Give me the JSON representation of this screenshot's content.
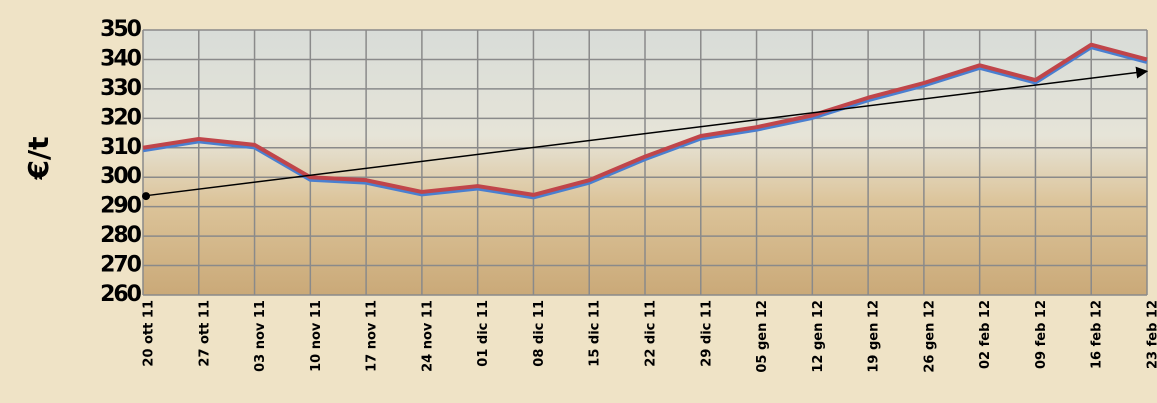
{
  "chart_data": {
    "type": "line",
    "ylabel": "€/t",
    "categories": [
      "20 ott 11",
      "27 ott 11",
      "03 nov 11",
      "10 nov 11",
      "17 nov 11",
      "24 nov 11",
      "01 dic 11",
      "08 dic 11",
      "15 dic 11",
      "22 dic 11",
      "29 dic 11",
      "05 gen 12",
      "12 gen 12",
      "19 gen 12",
      "26 gen 12",
      "02 feb 12",
      "09 feb 12",
      "16 feb 12",
      "23 feb 12"
    ],
    "series": [
      {
        "color": "#c0454a",
        "shadow_color": "#4a7fd0",
        "values": [
          310,
          313,
          311,
          300,
          299,
          295,
          297,
          294,
          299,
          307,
          314,
          317,
          321,
          327,
          332,
          338,
          333,
          345,
          340
        ]
      }
    ],
    "trendline": {
      "start": 293.6,
      "end": 336,
      "color": "#000000"
    },
    "ylim": [
      260,
      350
    ],
    "yticks": [
      260,
      270,
      280,
      290,
      300,
      310,
      320,
      330,
      340,
      350
    ],
    "grid": true
  }
}
